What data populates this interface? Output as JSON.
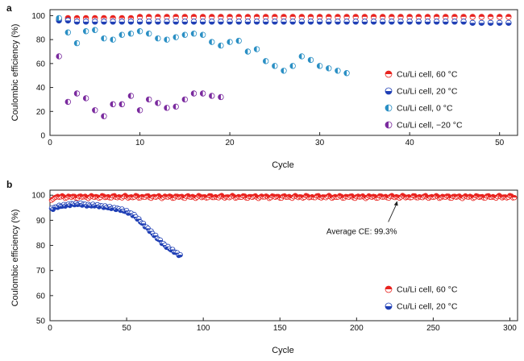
{
  "panel_a": {
    "letter": "a",
    "ylabel": "Coulombic efficiency (%)",
    "xlabel": "Cycle"
  },
  "panel_b": {
    "letter": "b",
    "ylabel": "Coulombic efficiency (%)",
    "xlabel": "Cycle",
    "annotation": "Average CE: 99.3%"
  },
  "chart_data": [
    {
      "type": "scatter",
      "panel": "a",
      "xlabel": "Cycle",
      "ylabel": "Coulombic efficiency (%)",
      "xlim": [
        0,
        52
      ],
      "ylim": [
        0,
        105
      ],
      "xticks": [
        0,
        10,
        20,
        30,
        40,
        50
      ],
      "yticks": [
        0,
        20,
        40,
        60,
        80,
        100
      ],
      "legend_position": "right-middle",
      "series": [
        {
          "name": "Cu/Li cell, 60 °C",
          "color": "#e8231f",
          "x": [
            1,
            2,
            3,
            4,
            5,
            6,
            7,
            8,
            9,
            10,
            11,
            12,
            13,
            14,
            15,
            16,
            17,
            18,
            19,
            20,
            21,
            22,
            23,
            24,
            25,
            26,
            27,
            28,
            29,
            30,
            31,
            32,
            33,
            34,
            35,
            36,
            37,
            38,
            39,
            40,
            41,
            42,
            43,
            44,
            45,
            46,
            47,
            48,
            49,
            50,
            51
          ],
          "y": [
            97,
            98,
            98,
            98,
            98,
            98,
            98,
            98,
            98,
            99,
            99,
            99,
            99,
            99,
            99,
            99,
            99,
            99,
            99,
            99,
            99,
            99,
            99,
            99,
            99,
            99,
            99,
            99,
            99,
            99,
            99,
            99,
            99,
            99,
            99,
            99,
            99,
            99,
            99,
            99,
            99,
            99,
            99,
            99,
            99,
            99,
            99,
            99,
            99,
            99,
            99
          ]
        },
        {
          "name": "Cu/Li cell, 20 °C",
          "color": "#1f3fb5",
          "x": [
            1,
            2,
            3,
            4,
            5,
            6,
            7,
            8,
            9,
            10,
            11,
            12,
            13,
            14,
            15,
            16,
            17,
            18,
            19,
            20,
            21,
            22,
            23,
            24,
            25,
            26,
            27,
            28,
            29,
            30,
            31,
            32,
            33,
            34,
            35,
            36,
            37,
            38,
            39,
            40,
            41,
            42,
            43,
            44,
            45,
            46,
            47,
            48,
            49,
            50,
            51
          ],
          "y": [
            96,
            96,
            95,
            95,
            95,
            95,
            95,
            95,
            95,
            95,
            95,
            95,
            95,
            95,
            95,
            95,
            95,
            95,
            95,
            95,
            95,
            95,
            95,
            95,
            95,
            95,
            95,
            95,
            95,
            95,
            95,
            95,
            95,
            95,
            95,
            95,
            95,
            95,
            95,
            95,
            95,
            95,
            95,
            95,
            95,
            95,
            94,
            94,
            94,
            94,
            94
          ]
        },
        {
          "name": "Cu/Li cell, 0 °C",
          "color": "#2a8fc4",
          "x": [
            1,
            2,
            3,
            4,
            5,
            6,
            7,
            8,
            9,
            10,
            11,
            12,
            13,
            14,
            15,
            16,
            17,
            18,
            19,
            20,
            21,
            22,
            23,
            24,
            25,
            26,
            27,
            28,
            29,
            30,
            31,
            32,
            33
          ],
          "y": [
            98,
            86,
            77,
            87,
            88,
            81,
            80,
            84,
            85,
            87,
            85,
            81,
            80,
            82,
            84,
            85,
            84,
            78,
            75,
            78,
            79,
            70,
            72,
            62,
            58,
            54,
            58,
            66,
            63,
            58,
            56,
            54,
            52
          ]
        },
        {
          "name": "Cu/Li cell, −20 °C",
          "color": "#7a2a9e",
          "x": [
            1,
            2,
            3,
            4,
            5,
            6,
            7,
            8,
            9,
            10,
            11,
            12,
            13,
            14,
            15,
            16,
            17,
            18,
            19
          ],
          "y": [
            66,
            28,
            35,
            31,
            21,
            16,
            26,
            26,
            33,
            21,
            30,
            27,
            23,
            24,
            30,
            35,
            35,
            33,
            32
          ]
        }
      ]
    },
    {
      "type": "scatter",
      "panel": "b",
      "xlabel": "Cycle",
      "ylabel": "Coulombic efficiency (%)",
      "xlim": [
        0,
        305
      ],
      "ylim": [
        50,
        102
      ],
      "xticks": [
        0,
        50,
        100,
        150,
        200,
        250,
        300
      ],
      "yticks": [
        50,
        60,
        70,
        80,
        90,
        100
      ],
      "legend_position": "bottom-right",
      "annotation": {
        "text": "Average CE: 99.3%",
        "points_to": [
          227,
          99.3
        ]
      },
      "series": [
        {
          "name": "Cu/Li cell, 60 °C",
          "color": "#e8231f",
          "note": "~300 points, nearly constant around 99–100 %",
          "x_range": [
            1,
            303
          ],
          "y_mean": 99.3
        },
        {
          "name": "Cu/Li cell, 20 °C",
          "color": "#1f3fb5",
          "x": [
            1,
            5,
            10,
            15,
            20,
            25,
            30,
            35,
            40,
            45,
            50,
            55,
            60,
            65,
            70,
            75,
            80,
            85
          ],
          "y": [
            94.5,
            95.5,
            96,
            96.5,
            96.5,
            96,
            96,
            95.5,
            95,
            94.5,
            93.5,
            92,
            89,
            86,
            83,
            80,
            78,
            76
          ]
        }
      ]
    }
  ]
}
